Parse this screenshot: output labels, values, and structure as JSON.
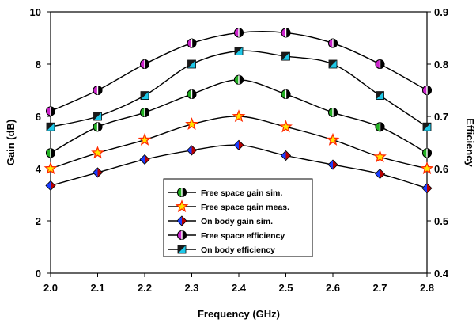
{
  "chart_data": {
    "type": "line",
    "xlabel": "Frequency (GHz)",
    "ylabel": "Gain (dB)",
    "y2label": "Efficiency",
    "x": [
      2.0,
      2.1,
      2.2,
      2.3,
      2.4,
      2.5,
      2.6,
      2.7,
      2.8
    ],
    "x_tick_labels": [
      "2.0",
      "2.1",
      "2.2",
      "2.3",
      "2.4",
      "2.5",
      "2.6",
      "2.7",
      "2.8"
    ],
    "xlim": [
      2.0,
      2.8
    ],
    "ylim": [
      0,
      10
    ],
    "y_ticks": [
      0,
      2,
      4,
      6,
      8,
      10
    ],
    "y2lim": [
      0.4,
      0.9
    ],
    "y2_ticks": [
      "0.4",
      "0.5",
      "0.6",
      "0.7",
      "0.8",
      "0.9"
    ],
    "grid": false,
    "legend_position": "bottom-center",
    "series": [
      {
        "name": "Free space gain sim.",
        "axis": "left",
        "marker": "half-circle",
        "color": "#22b022",
        "values": [
          4.6,
          5.6,
          6.15,
          6.85,
          7.4,
          6.85,
          6.15,
          5.6,
          4.6
        ]
      },
      {
        "name": "Free space gain meas.",
        "axis": "left",
        "marker": "star",
        "color": "#ff2a00",
        "values": [
          4.0,
          4.6,
          5.1,
          5.7,
          6.0,
          5.6,
          5.1,
          4.45,
          4.0
        ]
      },
      {
        "name": "On body gain sim.",
        "axis": "left",
        "marker": "diamond",
        "color": "#1a3dff",
        "values": [
          3.35,
          3.85,
          4.35,
          4.7,
          4.9,
          4.5,
          4.15,
          3.8,
          3.25
        ]
      },
      {
        "name": "Free space efficiency",
        "axis": "right",
        "marker": "half-circle",
        "color": "#cc22cc",
        "values": [
          0.71,
          0.75,
          0.8,
          0.84,
          0.86,
          0.86,
          0.84,
          0.8,
          0.75
        ]
      },
      {
        "name": "On body efficiency",
        "axis": "right",
        "marker": "half-square",
        "color": "#1ec8e8",
        "values": [
          0.68,
          0.7,
          0.74,
          0.8,
          0.825,
          0.815,
          0.8,
          0.74,
          0.68
        ]
      }
    ]
  }
}
